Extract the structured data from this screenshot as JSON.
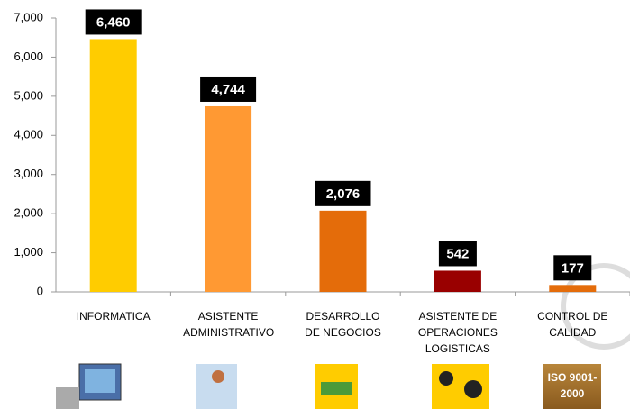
{
  "chart_data": {
    "type": "bar",
    "categories": [
      "INFORMATICA",
      "ASISTENTE ADMINISTRATIVO",
      "DESARROLLO DE NEGOCIOS",
      "ASISTENTE DE OPERACIONES LOGISTICAS",
      "CONTROL DE CALIDAD"
    ],
    "values": [
      6460,
      4744,
      2076,
      542,
      177
    ],
    "value_labels": [
      "6,460",
      "4,744",
      "2,076",
      "542",
      "177"
    ],
    "colors": [
      "#ffcc00",
      "#ff9933",
      "#e46c0a",
      "#990000",
      "#e46c0a"
    ],
    "ylim": [
      0,
      7000
    ],
    "yticks": [
      0,
      {
        "value": 1000,
        "label": "1,000"
      },
      {
        "value": 2000,
        "label": "2,000"
      },
      {
        "value": 3000,
        "label": "3,000"
      },
      {
        "value": 4000,
        "label": "4,000"
      },
      {
        "value": 5000,
        "label": "5,000"
      },
      {
        "value": 6000,
        "label": "6,000"
      },
      {
        "value": 7000,
        "label": "7,000"
      }
    ],
    "grid": false,
    "annotation": "ISO 9001-2000"
  }
}
